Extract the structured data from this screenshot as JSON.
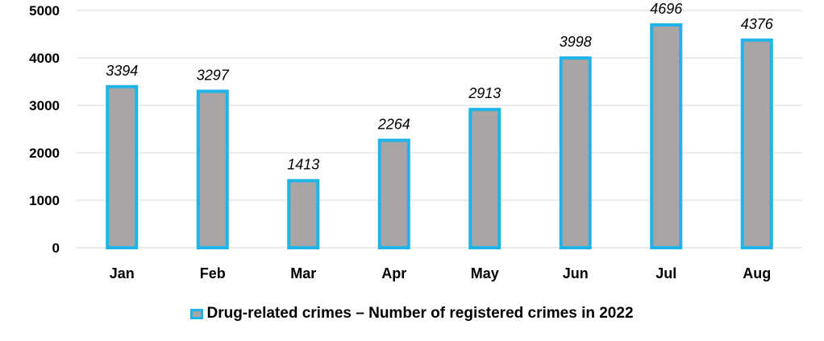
{
  "chart_data": {
    "type": "bar",
    "categories": [
      "Jan",
      "Feb",
      "Mar",
      "Apr",
      "May",
      "Jun",
      "Jul",
      "Aug"
    ],
    "series": [
      {
        "name": "Drug-related crimes – Number of registered crimes in 2022",
        "values": [
          3394,
          3297,
          1413,
          2264,
          2913,
          3998,
          4696,
          4376
        ]
      }
    ],
    "y_ticks": [
      "0",
      "1000",
      "2000",
      "3000",
      "4000",
      "5000"
    ],
    "ylim": [
      0,
      5000
    ],
    "grid": true,
    "legend_position": "bottom",
    "colors": {
      "bar_fill": "#a9a5a5",
      "bar_border": "#1fb4e8",
      "grid": "#d9d9d9"
    }
  }
}
